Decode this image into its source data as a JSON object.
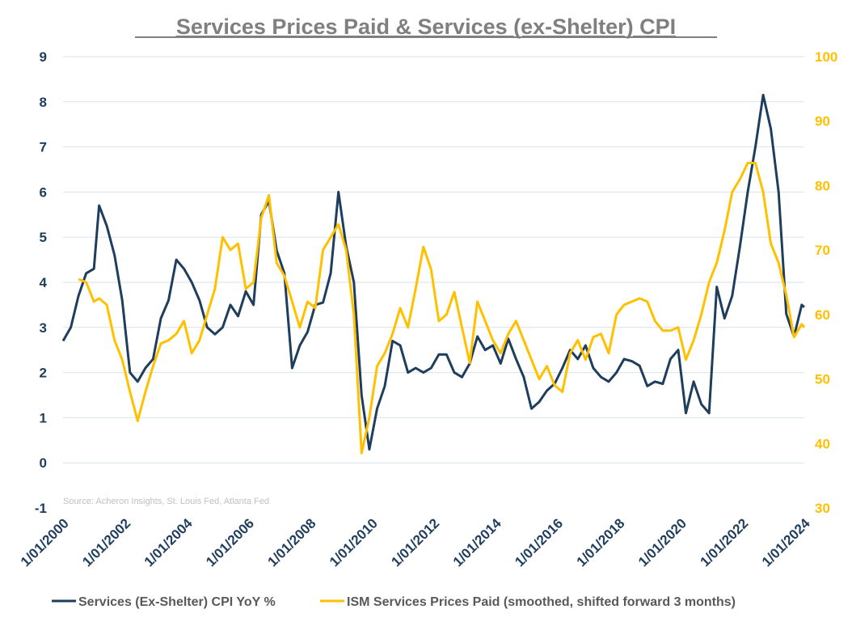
{
  "chart_data": {
    "type": "line",
    "title": "Services Prices Paid & Services (ex-Shelter) CPI",
    "source": "Source: Acheron Insights, St. Louis Fed, Atlanta Fed",
    "grid": "horizontal",
    "legend_position": "bottom",
    "left_axis": {
      "ylim": [
        -1,
        9
      ],
      "ticks": [
        "-1",
        "0",
        "1",
        "2",
        "3",
        "4",
        "5",
        "6",
        "7",
        "8",
        "9"
      ],
      "color": "#1f3d5c"
    },
    "right_axis": {
      "ylim": [
        30,
        100
      ],
      "ticks": [
        "30",
        "40",
        "50",
        "60",
        "70",
        "80",
        "90",
        "100"
      ],
      "color": "#ffc000"
    },
    "x_axis": {
      "range": [
        "2000-01",
        "2024-01"
      ],
      "ticks": [
        {
          "t": "2000-01",
          "label": "1/01/2000"
        },
        {
          "t": "2002-01",
          "label": "1/01/2002"
        },
        {
          "t": "2004-01",
          "label": "1/01/2004"
        },
        {
          "t": "2006-01",
          "label": "1/01/2006"
        },
        {
          "t": "2008-01",
          "label": "1/01/2008"
        },
        {
          "t": "2010-01",
          "label": "1/01/2010"
        },
        {
          "t": "2012-01",
          "label": "1/01/2012"
        },
        {
          "t": "2014-01",
          "label": "1/01/2014"
        },
        {
          "t": "2016-01",
          "label": "1/01/2016"
        },
        {
          "t": "2018-01",
          "label": "1/01/2018"
        },
        {
          "t": "2020-01",
          "label": "1/01/2020"
        },
        {
          "t": "2022-01",
          "label": "1/01/2022"
        },
        {
          "t": "2024-01",
          "label": "1/01/2024"
        }
      ]
    },
    "series": [
      {
        "name": "Services (Ex-Shelter) CPI YoY %",
        "axis": "left",
        "color": "#1f3d5c",
        "points": [
          [
            "2000-01",
            2.7
          ],
          [
            "2000-04",
            3.0
          ],
          [
            "2000-07",
            3.7
          ],
          [
            "2000-10",
            4.2
          ],
          [
            "2001-01",
            4.3
          ],
          [
            "2001-03",
            5.7
          ],
          [
            "2001-06",
            5.25
          ],
          [
            "2001-09",
            4.6
          ],
          [
            "2001-12",
            3.6
          ],
          [
            "2002-03",
            2.0
          ],
          [
            "2002-06",
            1.8
          ],
          [
            "2002-09",
            2.1
          ],
          [
            "2002-12",
            2.3
          ],
          [
            "2003-03",
            3.2
          ],
          [
            "2003-06",
            3.6
          ],
          [
            "2003-09",
            4.5
          ],
          [
            "2003-12",
            4.3
          ],
          [
            "2004-03",
            4.0
          ],
          [
            "2004-06",
            3.6
          ],
          [
            "2004-09",
            3.0
          ],
          [
            "2004-12",
            2.85
          ],
          [
            "2005-03",
            3.0
          ],
          [
            "2005-06",
            3.5
          ],
          [
            "2005-09",
            3.25
          ],
          [
            "2005-12",
            3.8
          ],
          [
            "2006-03",
            3.5
          ],
          [
            "2006-06",
            5.5
          ],
          [
            "2006-09",
            5.8
          ],
          [
            "2006-12",
            4.7
          ],
          [
            "2007-03",
            4.2
          ],
          [
            "2007-06",
            2.1
          ],
          [
            "2007-09",
            2.6
          ],
          [
            "2007-12",
            2.9
          ],
          [
            "2008-03",
            3.5
          ],
          [
            "2008-06",
            3.55
          ],
          [
            "2008-09",
            4.2
          ],
          [
            "2008-12",
            6.0
          ],
          [
            "2009-03",
            4.8
          ],
          [
            "2009-06",
            4.0
          ],
          [
            "2009-09",
            1.5
          ],
          [
            "2009-12",
            0.3
          ],
          [
            "2010-03",
            1.2
          ],
          [
            "2010-06",
            1.7
          ],
          [
            "2010-09",
            2.7
          ],
          [
            "2010-12",
            2.6
          ],
          [
            "2011-03",
            2.0
          ],
          [
            "2011-06",
            2.1
          ],
          [
            "2011-09",
            2.0
          ],
          [
            "2011-12",
            2.1
          ],
          [
            "2012-03",
            2.4
          ],
          [
            "2012-06",
            2.4
          ],
          [
            "2012-09",
            2.0
          ],
          [
            "2012-12",
            1.9
          ],
          [
            "2013-03",
            2.2
          ],
          [
            "2013-06",
            2.8
          ],
          [
            "2013-09",
            2.5
          ],
          [
            "2013-12",
            2.6
          ],
          [
            "2014-03",
            2.2
          ],
          [
            "2014-06",
            2.75
          ],
          [
            "2014-09",
            2.3
          ],
          [
            "2014-12",
            1.9
          ],
          [
            "2015-03",
            1.2
          ],
          [
            "2015-06",
            1.35
          ],
          [
            "2015-09",
            1.6
          ],
          [
            "2015-12",
            1.75
          ],
          [
            "2016-03",
            2.1
          ],
          [
            "2016-06",
            2.5
          ],
          [
            "2016-09",
            2.3
          ],
          [
            "2016-12",
            2.6
          ],
          [
            "2017-03",
            2.1
          ],
          [
            "2017-06",
            1.9
          ],
          [
            "2017-09",
            1.8
          ],
          [
            "2017-12",
            2.0
          ],
          [
            "2018-03",
            2.3
          ],
          [
            "2018-06",
            2.25
          ],
          [
            "2018-09",
            2.15
          ],
          [
            "2018-12",
            1.7
          ],
          [
            "2019-03",
            1.8
          ],
          [
            "2019-06",
            1.75
          ],
          [
            "2019-09",
            2.3
          ],
          [
            "2019-12",
            2.5
          ],
          [
            "2020-03",
            1.1
          ],
          [
            "2020-06",
            1.8
          ],
          [
            "2020-09",
            1.3
          ],
          [
            "2020-12",
            1.1
          ],
          [
            "2021-03",
            3.9
          ],
          [
            "2021-06",
            3.2
          ],
          [
            "2021-09",
            3.7
          ],
          [
            "2021-12",
            4.8
          ],
          [
            "2022-03",
            6.0
          ],
          [
            "2022-06",
            7.0
          ],
          [
            "2022-09",
            8.15
          ],
          [
            "2022-12",
            7.4
          ],
          [
            "2023-03",
            6.0
          ],
          [
            "2023-06",
            3.3
          ],
          [
            "2023-09",
            2.8
          ],
          [
            "2023-12",
            3.5
          ],
          [
            "2024-01",
            3.45
          ]
        ]
      },
      {
        "name": "ISM Services Prices Paid (smoothed, shifted forward 3 months)",
        "axis": "right",
        "color": "#ffc000",
        "points": [
          [
            "2000-07",
            65.5
          ],
          [
            "2000-10",
            65.0
          ],
          [
            "2001-01",
            62.0
          ],
          [
            "2001-03",
            62.5
          ],
          [
            "2001-06",
            61.5
          ],
          [
            "2001-09",
            56.0
          ],
          [
            "2001-12",
            53.0
          ],
          [
            "2002-03",
            48.0
          ],
          [
            "2002-06",
            43.5
          ],
          [
            "2002-09",
            48.0
          ],
          [
            "2002-12",
            52.0
          ],
          [
            "2003-03",
            55.5
          ],
          [
            "2003-06",
            56.0
          ],
          [
            "2003-09",
            57.0
          ],
          [
            "2003-12",
            59.0
          ],
          [
            "2004-03",
            54.0
          ],
          [
            "2004-06",
            56.0
          ],
          [
            "2004-09",
            60.0
          ],
          [
            "2004-12",
            64.0
          ],
          [
            "2005-03",
            72.0
          ],
          [
            "2005-06",
            70.0
          ],
          [
            "2005-09",
            71.0
          ],
          [
            "2005-12",
            64.0
          ],
          [
            "2006-03",
            65.0
          ],
          [
            "2006-06",
            75.0
          ],
          [
            "2006-09",
            78.5
          ],
          [
            "2006-12",
            68.0
          ],
          [
            "2007-03",
            66.0
          ],
          [
            "2007-06",
            62.0
          ],
          [
            "2007-09",
            58.0
          ],
          [
            "2007-12",
            62.0
          ],
          [
            "2008-03",
            61.0
          ],
          [
            "2008-06",
            70.0
          ],
          [
            "2008-09",
            72.0
          ],
          [
            "2008-12",
            74.0
          ],
          [
            "2009-03",
            70.0
          ],
          [
            "2009-06",
            60.0
          ],
          [
            "2009-09",
            38.5
          ],
          [
            "2009-12",
            44.0
          ],
          [
            "2010-03",
            52.0
          ],
          [
            "2010-06",
            54.0
          ],
          [
            "2010-09",
            57.0
          ],
          [
            "2010-12",
            61.0
          ],
          [
            "2011-03",
            58.0
          ],
          [
            "2011-06",
            64.0
          ],
          [
            "2011-09",
            70.5
          ],
          [
            "2011-12",
            67.0
          ],
          [
            "2012-03",
            59.0
          ],
          [
            "2012-06",
            60.0
          ],
          [
            "2012-09",
            63.5
          ],
          [
            "2012-12",
            58.0
          ],
          [
            "2013-03",
            52.5
          ],
          [
            "2013-06",
            62.0
          ],
          [
            "2013-09",
            59.0
          ],
          [
            "2013-12",
            56.0
          ],
          [
            "2014-03",
            54.0
          ],
          [
            "2014-06",
            57.0
          ],
          [
            "2014-09",
            59.0
          ],
          [
            "2014-12",
            56.0
          ],
          [
            "2015-03",
            53.0
          ],
          [
            "2015-06",
            50.0
          ],
          [
            "2015-09",
            52.0
          ],
          [
            "2015-12",
            49.0
          ],
          [
            "2016-03",
            48.0
          ],
          [
            "2016-06",
            54.0
          ],
          [
            "2016-09",
            56.0
          ],
          [
            "2016-12",
            53.0
          ],
          [
            "2017-03",
            56.5
          ],
          [
            "2017-06",
            57.0
          ],
          [
            "2017-09",
            54.0
          ],
          [
            "2017-12",
            60.0
          ],
          [
            "2018-03",
            61.5
          ],
          [
            "2018-06",
            62.0
          ],
          [
            "2018-09",
            62.5
          ],
          [
            "2018-12",
            62.0
          ],
          [
            "2019-03",
            59.0
          ],
          [
            "2019-06",
            57.5
          ],
          [
            "2019-09",
            57.5
          ],
          [
            "2019-12",
            58.0
          ],
          [
            "2020-03",
            53.0
          ],
          [
            "2020-06",
            56.0
          ],
          [
            "2020-09",
            60.0
          ],
          [
            "2020-12",
            65.0
          ],
          [
            "2021-03",
            68.0
          ],
          [
            "2021-06",
            73.0
          ],
          [
            "2021-09",
            79.0
          ],
          [
            "2021-12",
            81.0
          ],
          [
            "2022-03",
            83.5
          ],
          [
            "2022-06",
            83.5
          ],
          [
            "2022-09",
            79.0
          ],
          [
            "2022-12",
            71.0
          ],
          [
            "2023-03",
            68.0
          ],
          [
            "2023-06",
            63.0
          ],
          [
            "2023-09",
            56.5
          ],
          [
            "2023-12",
            58.5
          ],
          [
            "2024-01",
            58.0
          ]
        ]
      }
    ]
  }
}
